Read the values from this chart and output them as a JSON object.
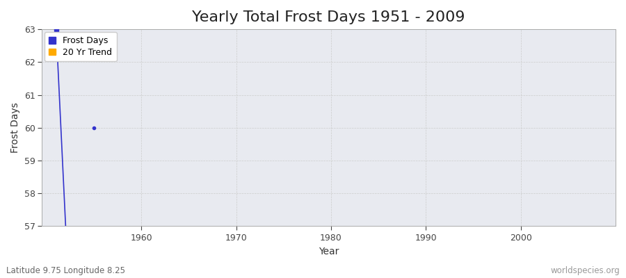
{
  "title": "Yearly Total Frost Days 1951 - 2009",
  "xlabel": "Year",
  "ylabel": "Frost Days",
  "xlim": [
    1949.5,
    2010
  ],
  "ylim": [
    57,
    63
  ],
  "yticks": [
    57,
    58,
    59,
    60,
    61,
    62,
    63
  ],
  "xticks": [
    1960,
    1970,
    1980,
    1990,
    2000
  ],
  "frost_days_years": [
    1951,
    1952,
    1955
  ],
  "frost_days_values": [
    63,
    57,
    60
  ],
  "frost_color": "#3333cc",
  "trend_color": "#ffaa00",
  "background_color": "#ffffff",
  "plot_bg_color": "#e8eaf0",
  "grid_color": "#cccccc",
  "subtitle_left": "Latitude 9.75 Longitude 8.25",
  "subtitle_right": "worldspecies.org",
  "title_fontsize": 16,
  "label_fontsize": 10,
  "tick_fontsize": 9,
  "footer_fontsize": 8.5,
  "legend_fontsize": 9
}
